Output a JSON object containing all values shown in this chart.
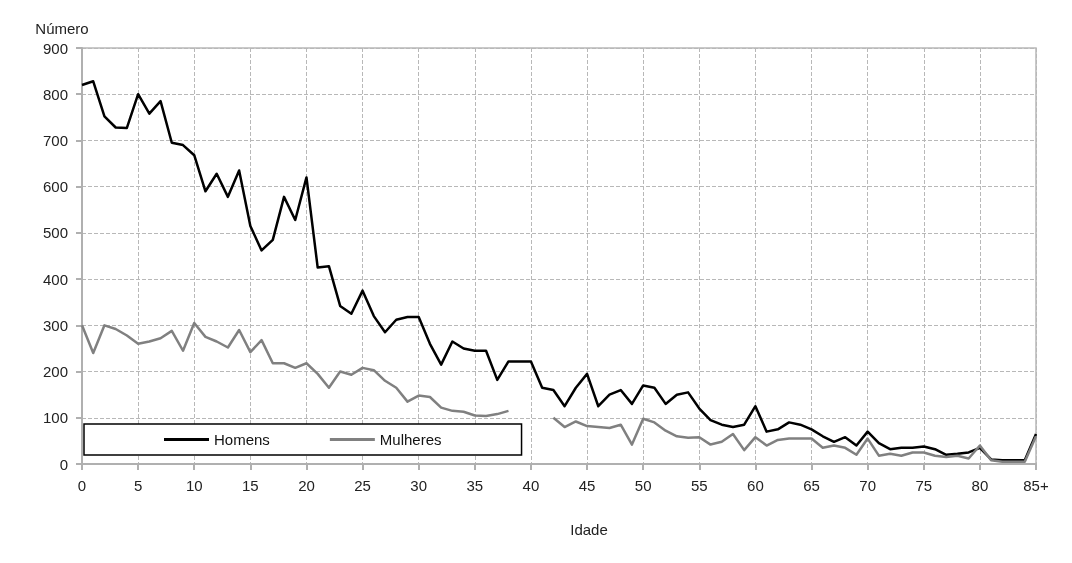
{
  "chart_data": {
    "type": "line",
    "xlabel": "Idade",
    "ylabel": "Número",
    "categories": [
      "0",
      null,
      null,
      null,
      null,
      "5",
      null,
      null,
      null,
      null,
      "10",
      null,
      null,
      null,
      null,
      "15",
      null,
      null,
      null,
      null,
      "20",
      null,
      null,
      null,
      null,
      "25",
      null,
      null,
      null,
      null,
      "30",
      null,
      null,
      null,
      null,
      "35",
      null,
      null,
      null,
      null,
      "40",
      null,
      null,
      null,
      null,
      "45",
      null,
      null,
      null,
      null,
      "50",
      null,
      null,
      null,
      null,
      "55",
      null,
      null,
      null,
      null,
      "60",
      null,
      null,
      null,
      null,
      "65",
      null,
      null,
      null,
      null,
      "70",
      null,
      null,
      null,
      null,
      "75",
      null,
      null,
      null,
      null,
      "80",
      null,
      null,
      null,
      null,
      "85+"
    ],
    "series": [
      {
        "name": "Homens",
        "color": "#000000",
        "values": [
          820,
          828,
          752,
          728,
          727,
          800,
          758,
          785,
          695,
          690,
          668,
          590,
          628,
          578,
          635,
          515,
          462,
          485,
          578,
          528,
          620,
          425,
          428,
          342,
          325,
          375,
          320,
          285,
          312,
          318,
          318,
          260,
          215,
          265,
          250,
          245,
          245,
          182,
          222,
          222,
          222,
          165,
          160,
          125,
          165,
          195,
          125,
          150,
          160,
          130,
          170,
          165,
          130,
          150,
          155,
          120,
          95,
          85,
          80,
          85,
          125,
          70,
          75,
          90,
          85,
          75,
          60,
          48,
          58,
          40,
          70,
          45,
          32,
          35,
          35,
          38,
          32,
          20,
          22,
          25,
          35,
          10,
          8,
          8,
          8,
          65
        ]
      },
      {
        "name": "Mulheres",
        "color": "#808080",
        "values": [
          300,
          240,
          300,
          292,
          278,
          260,
          265,
          272,
          288,
          245,
          305,
          275,
          265,
          252,
          290,
          242,
          268,
          218,
          218,
          208,
          218,
          195,
          165,
          200,
          193,
          208,
          203,
          180,
          165,
          135,
          148,
          145,
          122,
          115,
          113,
          105,
          104,
          108,
          115,
          null,
          null,
          null,
          100,
          80,
          92,
          82,
          80,
          78,
          85,
          42,
          98,
          90,
          72,
          60,
          57,
          58,
          42,
          48,
          65,
          30,
          58,
          40,
          52,
          55,
          55,
          55,
          35,
          40,
          35,
          20,
          55,
          18,
          22,
          18,
          25,
          25,
          18,
          15,
          18,
          12,
          40,
          8,
          5,
          5,
          5,
          60
        ]
      }
    ],
    "ylim": [
      0,
      900
    ],
    "yticks": [
      0,
      100,
      200,
      300,
      400,
      500,
      600,
      700,
      800,
      900
    ],
    "grid": true,
    "legend": "bottom left",
    "marker": "none",
    "line_style": "solid"
  }
}
